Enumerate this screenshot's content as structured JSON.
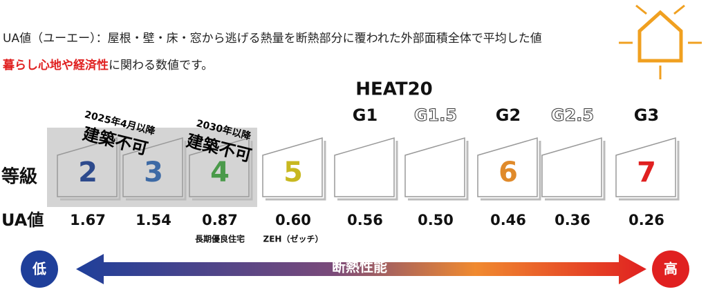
{
  "description": {
    "line1": "UA値（ユーエー）：屋根・壁・床・窓から逃げる熱量を断熱部分に覆われた外部面積全体で平均した値",
    "line2_highlight": "暮らし心地や経済性",
    "line2_rest": "に関わる数値です。"
  },
  "heat20_title": "HEAT20",
  "row_labels": {
    "grade": "等級",
    "ua": "UA値"
  },
  "columns": [
    {
      "grade": "2",
      "ua": "1.67"
    },
    {
      "grade": "3",
      "ua": "1.54"
    },
    {
      "grade": "4",
      "ua": "0.87",
      "note": "長期優良住宅"
    },
    {
      "grade": "5",
      "ua": "0.60",
      "note": "ZEH（ゼッチ）"
    },
    {
      "heat20": "G1",
      "ua": "0.56"
    },
    {
      "heat20": "G1.5",
      "ua": "0.50"
    },
    {
      "heat20": "G2",
      "grade": "6",
      "ua": "0.46"
    },
    {
      "heat20": "G2.5",
      "ua": "0.36"
    },
    {
      "heat20": "G3",
      "grade": "7",
      "ua": "0.26"
    }
  ],
  "restrictions": [
    {
      "date": "2025年4月以降",
      "text": "建築不可"
    },
    {
      "date": "2030年以降",
      "text": "建築不可"
    }
  ],
  "scale": {
    "low": "低",
    "label": "断熱性能",
    "high": "高"
  }
}
